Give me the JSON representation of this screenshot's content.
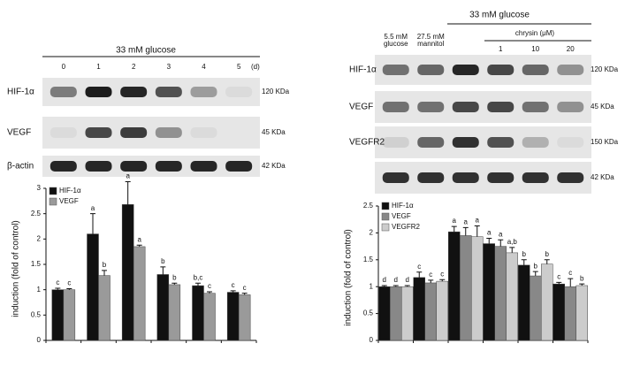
{
  "chart_data": [
    {
      "type": "bar",
      "ylabel": "induction (fold of control)",
      "categories": [
        null,
        null,
        null,
        null,
        null,
        null
      ],
      "series": [
        {
          "name": "HIF-1α",
          "color": "#111111",
          "values": [
            1.0,
            2.1,
            2.68,
            1.3,
            1.08,
            0.95
          ],
          "errors": [
            0.03,
            0.4,
            0.45,
            0.15,
            0.05,
            0.03
          ],
          "letters": [
            "c",
            "a",
            "a",
            "b",
            "b,c",
            "c"
          ]
        },
        {
          "name": "VEGF",
          "color": "#9a9a9a",
          "values": [
            1.0,
            1.28,
            1.85,
            1.1,
            0.93,
            0.9
          ],
          "errors": [
            0.02,
            0.1,
            0.03,
            0.03,
            0.03,
            0.03
          ],
          "letters": [
            "c",
            "b",
            "a",
            "b",
            "c",
            "c"
          ]
        }
      ],
      "ylim": [
        0,
        3
      ],
      "yticks": [
        0,
        0.5,
        1,
        1.5,
        2,
        2.5,
        3
      ]
    },
    {
      "type": "bar",
      "ylabel": "induction (fold of control)",
      "categories": [
        null,
        null,
        null,
        null,
        null,
        null
      ],
      "series": [
        {
          "name": "HIF-1α",
          "color": "#111111",
          "values": [
            1.0,
            1.17,
            2.02,
            1.8,
            1.4,
            1.05
          ],
          "errors": [
            0.02,
            0.1,
            0.1,
            0.1,
            0.1,
            0.03
          ],
          "letters": [
            "d",
            "c",
            "a",
            "a",
            "b",
            "c"
          ]
        },
        {
          "name": "VEGF",
          "color": "#888888",
          "values": [
            1.0,
            1.07,
            1.95,
            1.75,
            1.2,
            1.0
          ],
          "errors": [
            0.02,
            0.05,
            0.15,
            0.12,
            0.08,
            0.15
          ],
          "letters": [
            "d",
            "c",
            "a",
            "a",
            "b",
            "c"
          ]
        },
        {
          "name": "VEGFR2",
          "color": "#cccccc",
          "values": [
            1.0,
            1.1,
            1.93,
            1.63,
            1.42,
            1.02
          ],
          "errors": [
            0.02,
            0.03,
            0.2,
            0.1,
            0.08,
            0.03
          ],
          "letters": [
            "d",
            "c",
            "a",
            "a,b",
            "b",
            "b"
          ]
        }
      ],
      "ylim": [
        0,
        2.5
      ],
      "yticks": [
        0,
        0.5,
        1,
        1.5,
        2,
        2.5
      ]
    }
  ],
  "blots": [
    {
      "treatment": "33 mM glucose",
      "lanes": [
        "0",
        "1",
        "2",
        "3",
        "4",
        "5"
      ],
      "unit": "(d)",
      "rows": [
        {
          "label": "HIF-1α",
          "size": "120 KDa"
        },
        {
          "label": "VEGF",
          "size": "45 KDa"
        },
        {
          "label": "β-actin",
          "size": "42 KDa"
        }
      ]
    },
    {
      "treatment": "33 mM glucose",
      "inhibitor": "chrysin (μM)",
      "controls": [
        [
          "5.5 mM",
          "glucose"
        ],
        [
          "27.5 mM",
          "mannitol"
        ]
      ],
      "lanes": [
        "1",
        "10",
        "20"
      ],
      "rows": [
        {
          "label": "HIF-1α",
          "size": "120 KDa"
        },
        {
          "label": "VEGF",
          "size": "45 KDa"
        },
        {
          "label": "VEGFR2",
          "size": "150 KDa"
        },
        {
          "size": "42 KDa"
        }
      ]
    }
  ]
}
